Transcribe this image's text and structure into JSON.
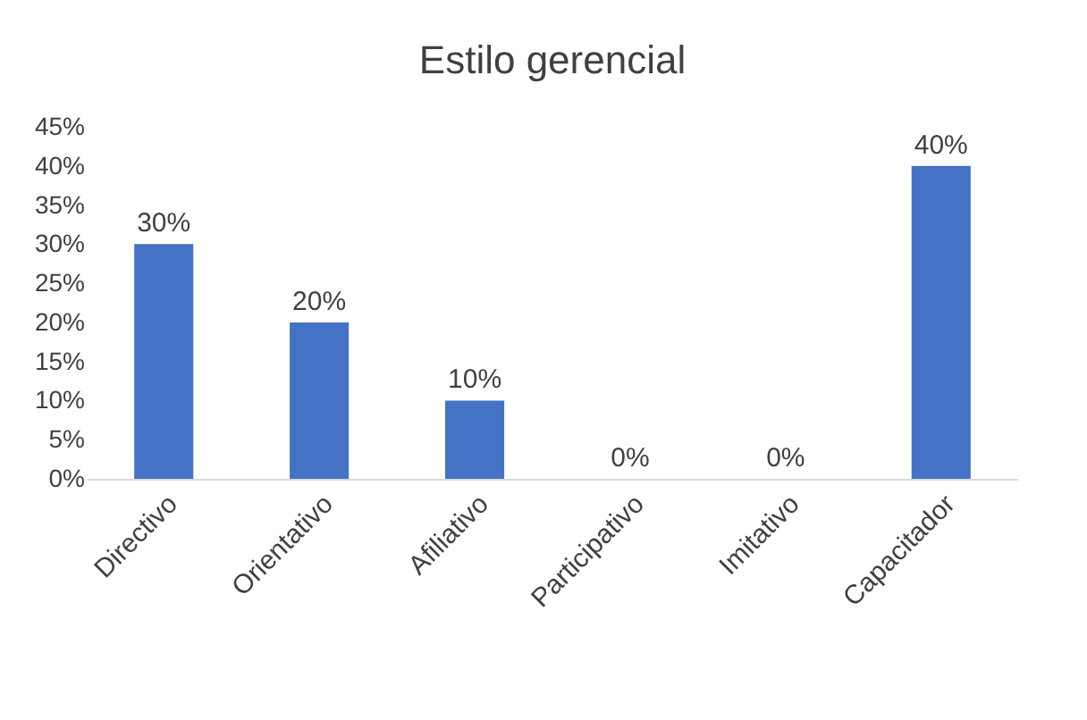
{
  "chart_data": {
    "type": "bar",
    "title": "Estilo gerencial",
    "categories": [
      "Directivo",
      "Orientativo",
      "Afiliativo",
      "Participativo",
      "Imitativo",
      "Capacitador"
    ],
    "values": [
      30,
      20,
      10,
      0,
      0,
      40
    ],
    "value_labels": [
      "30%",
      "20%",
      "10%",
      "0%",
      "0%",
      "40%"
    ],
    "color": "#4472c4",
    "ylim": [
      0,
      45
    ],
    "yticks": [
      {
        "value": 0,
        "label": "0%"
      },
      {
        "value": 5,
        "label": "5%"
      },
      {
        "value": 10,
        "label": "10%"
      },
      {
        "value": 15,
        "label": "15%"
      },
      {
        "value": 20,
        "label": "20%"
      },
      {
        "value": 25,
        "label": "25%"
      },
      {
        "value": 30,
        "label": "30%"
      },
      {
        "value": 35,
        "label": "35%"
      },
      {
        "value": 40,
        "label": "40%"
      },
      {
        "value": 45,
        "label": "45%"
      }
    ]
  }
}
